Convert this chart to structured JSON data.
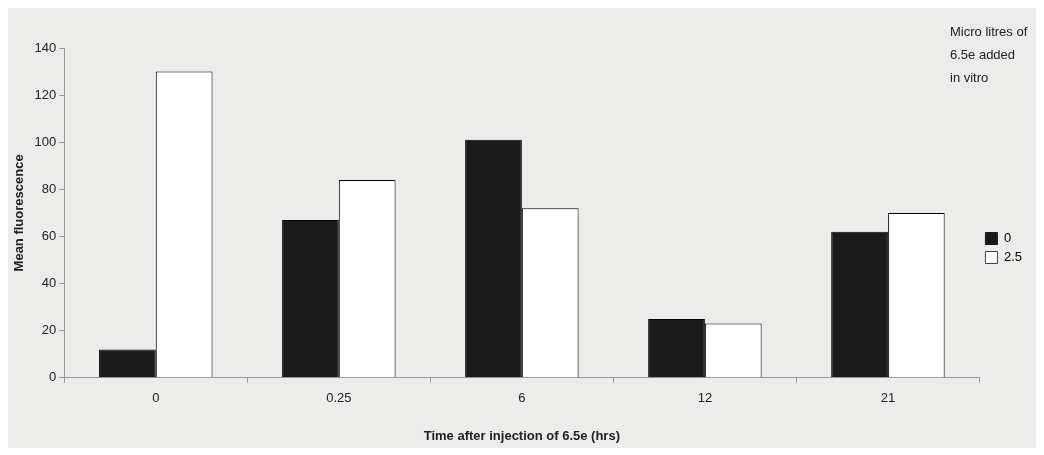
{
  "chart_data": {
    "type": "bar",
    "categories": [
      "0",
      "0.25",
      "6",
      "12",
      "21"
    ],
    "series": [
      {
        "name": "0",
        "color": "#1a1a1a",
        "values": [
          12,
          67,
          101,
          25,
          62
        ]
      },
      {
        "name": "2.5",
        "color": "#ffffff",
        "values": [
          130,
          84,
          72,
          23,
          70
        ]
      }
    ],
    "xlabel": "Time after injection of 6.5e (hrs)",
    "ylabel": "Mean fluorescence",
    "legend_title": "Micro litres of 6.5e added in vitro",
    "ylim": [
      0,
      140
    ],
    "yticks": [
      0,
      20,
      40,
      60,
      80,
      100,
      120,
      140
    ],
    "grid": false,
    "legend": "right"
  }
}
